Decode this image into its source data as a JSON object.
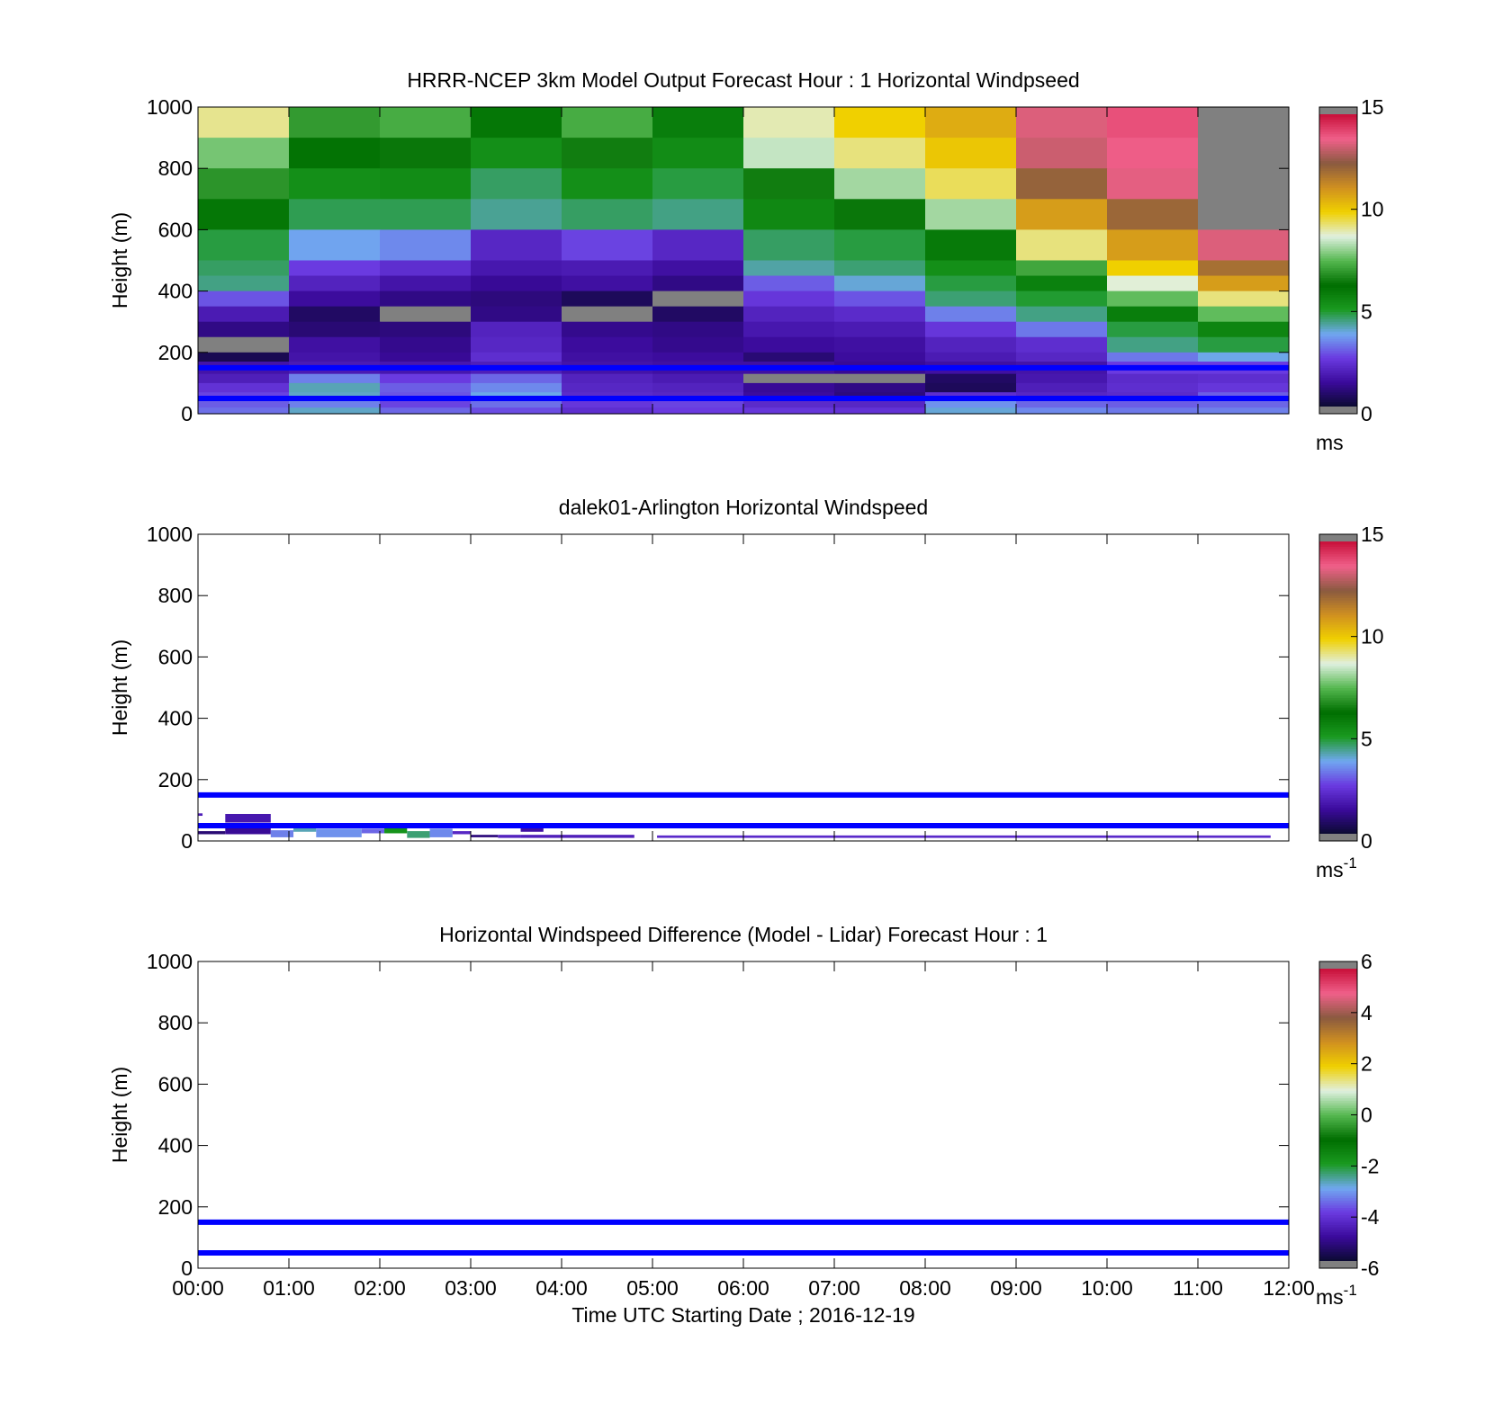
{
  "chart_data": [
    {
      "type": "heatmap",
      "title": "HRRR-NCEP 3km Model Output   Forecast Hour : 1 Horizontal Windpseed",
      "ylabel": "Height (m)",
      "xlabel": "",
      "ylim": [
        0,
        1000
      ],
      "xlim": [
        0,
        12
      ],
      "y_ticks": [
        "0",
        "200",
        "400",
        "600",
        "800",
        "1000"
      ],
      "x_ticks": [
        "",
        "",
        "",
        "",
        "",
        "",
        "",
        "",
        "",
        "",
        "",
        "",
        ""
      ],
      "colorbar": {
        "min": 0,
        "max": 15,
        "ticks": [
          "0",
          "5",
          "10",
          "15"
        ],
        "unit": "ms",
        "unit_sup": ""
      },
      "grid": false,
      "hlines": [
        150,
        50
      ],
      "cells": {
        "col_width_h": 1,
        "rows": [
          {
            "y0": 900,
            "y1": 1000,
            "v": [
              9.2,
              7.0,
              7.3,
              6.0,
              7.3,
              5.8,
              9.0,
              10.0,
              10.7,
              13.5,
              14.0,
              -1
            ]
          },
          {
            "y0": 800,
            "y1": 900,
            "v": [
              7.8,
              6.1,
              6.4,
              5.3,
              6.5,
              5.4,
              8.5,
              9.3,
              10.2,
              13.3,
              13.8,
              -1
            ]
          },
          {
            "y0": 700,
            "y1": 800,
            "v": [
              6.9,
              5.3,
              5.4,
              4.6,
              5.3,
              4.8,
              6.5,
              8.2,
              9.5,
              12.3,
              13.6,
              -1
            ]
          },
          {
            "y0": 600,
            "y1": 700,
            "v": [
              6.0,
              4.7,
              4.7,
              4.3,
              4.6,
              4.4,
              5.5,
              6.4,
              8.2,
              11.0,
              12.2,
              -1
            ]
          },
          {
            "y0": 500,
            "y1": 600,
            "v": [
              4.8,
              3.7,
              3.4,
              2.0,
              2.6,
              2.0,
              4.6,
              4.8,
              5.9,
              9.3,
              11.0,
              13.5
            ]
          },
          {
            "y0": 450,
            "y1": 500,
            "v": [
              4.6,
              2.5,
              2.2,
              1.6,
              1.7,
              1.4,
              4.2,
              4.5,
              5.3,
              7.2,
              10.0,
              12.0
            ]
          },
          {
            "y0": 400,
            "y1": 450,
            "v": [
              4.4,
              1.9,
              1.5,
              1.2,
              1.4,
              1.0,
              2.9,
              3.9,
              4.8,
              5.7,
              8.8,
              11.0
            ]
          },
          {
            "y0": 350,
            "y1": 400,
            "v": [
              2.8,
              1.3,
              1.0,
              0.9,
              0.5,
              -1,
              2.4,
              2.8,
              4.5,
              4.9,
              7.6,
              9.3
            ]
          },
          {
            "y0": 300,
            "y1": 350,
            "v": [
              1.7,
              0.6,
              -1,
              1.0,
              -1,
              0.6,
              1.9,
              2.1,
              3.3,
              4.4,
              5.8,
              7.6
            ]
          },
          {
            "y0": 250,
            "y1": 300,
            "v": [
              1.0,
              0.8,
              0.9,
              1.9,
              1.1,
              1.0,
              1.6,
              1.7,
              2.4,
              3.2,
              4.8,
              5.6
            ]
          },
          {
            "y0": 200,
            "y1": 250,
            "v": [
              -1,
              1.4,
              1.1,
              2.0,
              1.3,
              1.1,
              1.3,
              1.4,
              1.9,
              2.2,
              4.4,
              4.8
            ]
          },
          {
            "y0": 170,
            "y1": 200,
            "v": [
              0.4,
              1.5,
              1.2,
              2.2,
              1.4,
              1.3,
              0.8,
              1.3,
              1.7,
              2.0,
              3.2,
              3.8
            ]
          },
          {
            "y0": 130,
            "y1": 170,
            "v": [
              1.5,
              1.7,
              1.6,
              1.8,
              1.5,
              1.4,
              1.4,
              1.2,
              1.4,
              1.5,
              2.5,
              2.5
            ]
          },
          {
            "y0": 100,
            "y1": 130,
            "v": [
              1.8,
              3.3,
              2.5,
              3.0,
              1.9,
              1.7,
              -1,
              -1,
              0.6,
              1.6,
              2.1,
              2.2
            ]
          },
          {
            "y0": 70,
            "y1": 100,
            "v": [
              2.3,
              4.1,
              2.9,
              3.4,
              2.0,
              1.9,
              1.2,
              1.0,
              0.5,
              1.8,
              2.2,
              2.4
            ]
          },
          {
            "y0": 50,
            "y1": 70,
            "v": [
              2.6,
              4.0,
              2.8,
              3.8,
              2.1,
              2.0,
              1.3,
              0.9,
              2.2,
              2.0,
              2.1,
              2.9
            ]
          },
          {
            "y0": 20,
            "y1": 50,
            "v": [
              2.9,
              3.3,
              2.6,
              3.1,
              2.4,
              2.6,
              2.1,
              2.0,
              3.5,
              3.0,
              2.9,
              3.0
            ]
          },
          {
            "y0": 0,
            "y1": 20,
            "v": [
              3.1,
              4.0,
              3.0,
              2.7,
              2.2,
              2.5,
              2.4,
              2.3,
              3.9,
              3.4,
              3.2,
              3.3
            ]
          }
        ]
      }
    },
    {
      "type": "heatmap",
      "title": "dalek01-Arlington  Horizontal Windspeed",
      "ylabel": "Height (m)",
      "xlabel": "",
      "ylim": [
        0,
        1000
      ],
      "xlim": [
        0,
        12
      ],
      "y_ticks": [
        "0",
        "200",
        "400",
        "600",
        "800",
        "1000"
      ],
      "x_ticks": [
        "",
        "",
        "",
        "",
        "",
        "",
        "",
        "",
        "",
        "",
        "",
        "",
        ""
      ],
      "colorbar": {
        "min": 0,
        "max": 15,
        "ticks": [
          "0",
          "5",
          "10",
          "15"
        ],
        "unit": "ms",
        "unit_sup": "-1"
      },
      "grid": false,
      "hlines": [
        150,
        50
      ],
      "cells": {
        "segments": [
          {
            "x0": 0.0,
            "x1": 0.05,
            "y0": 82,
            "y1": 90,
            "v": 1.8
          },
          {
            "x0": 0.3,
            "x1": 0.8,
            "y0": 60,
            "y1": 88,
            "v": 1.6
          },
          {
            "x0": 0.0,
            "x1": 0.3,
            "y0": 22,
            "y1": 32,
            "v": 0.8
          },
          {
            "x0": 0.3,
            "x1": 0.8,
            "y0": 22,
            "y1": 45,
            "v": 1.2
          },
          {
            "x0": 0.8,
            "x1": 1.05,
            "y0": 12,
            "y1": 35,
            "v": 3.3
          },
          {
            "x0": 1.05,
            "x1": 1.3,
            "y0": 30,
            "y1": 45,
            "v": 4.1
          },
          {
            "x0": 1.3,
            "x1": 1.8,
            "y0": 12,
            "y1": 40,
            "v": 3.5
          },
          {
            "x0": 1.8,
            "x1": 2.05,
            "y0": 25,
            "y1": 40,
            "v": 3.0
          },
          {
            "x0": 2.05,
            "x1": 2.3,
            "y0": 25,
            "y1": 42,
            "v": 5.2
          },
          {
            "x0": 2.3,
            "x1": 2.55,
            "y0": 10,
            "y1": 32,
            "v": 4.5
          },
          {
            "x0": 2.55,
            "x1": 2.8,
            "y0": 12,
            "y1": 40,
            "v": 3.4
          },
          {
            "x0": 2.8,
            "x1": 3.0,
            "y0": 22,
            "y1": 32,
            "v": 2.0
          },
          {
            "x0": 3.0,
            "x1": 3.3,
            "y0": 12,
            "y1": 20,
            "v": 0.9
          },
          {
            "x0": 3.3,
            "x1": 3.55,
            "y0": 10,
            "y1": 20,
            "v": 1.9
          },
          {
            "x0": 3.55,
            "x1": 3.8,
            "y0": 30,
            "y1": 45,
            "v": 1.4
          },
          {
            "x0": 3.55,
            "x1": 4.8,
            "y0": 10,
            "y1": 20,
            "v": 1.8
          },
          {
            "x0": 5.05,
            "x1": 11.8,
            "y0": 10,
            "y1": 18,
            "v": 2.1
          }
        ]
      }
    },
    {
      "type": "heatmap",
      "title": "Horizontal Windspeed Difference (Model - Lidar) Forecast Hour : 1",
      "ylabel": "Height (m)",
      "xlabel": "Time UTC  Starting Date ; 2016-12-19",
      "ylim": [
        0,
        1000
      ],
      "xlim": [
        0,
        12
      ],
      "y_ticks": [
        "0",
        "200",
        "400",
        "600",
        "800",
        "1000"
      ],
      "x_ticks": [
        "00:00",
        "01:00",
        "02:00",
        "03:00",
        "04:00",
        "05:00",
        "06:00",
        "07:00",
        "08:00",
        "09:00",
        "10:00",
        "11:00",
        "12:00"
      ],
      "colorbar": {
        "min": -6,
        "max": 6,
        "ticks": [
          "-6",
          "-4",
          "-2",
          "0",
          "2",
          "4",
          "6"
        ],
        "unit": "ms",
        "unit_sup": "-1"
      },
      "grid": false,
      "hlines": [
        150,
        50
      ],
      "cells": {}
    }
  ],
  "colors": {
    "hline": "#0000ff",
    "out_of_range": "#808080",
    "axis": "#000000",
    "colormap_stops": [
      "#0a0a30",
      "#3a0a9a",
      "#6a3ae0",
      "#70a8f0",
      "#1a9a20",
      "#006e00",
      "#55b850",
      "#e0f0e0",
      "#f0d000",
      "#d09020",
      "#8a5a40",
      "#f0608a",
      "#c8103a"
    ]
  }
}
